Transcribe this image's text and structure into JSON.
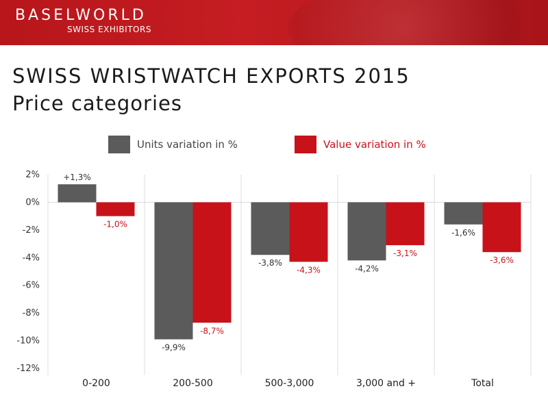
{
  "header": {
    "brand": "BASELWORLD",
    "sub": "SWISS EXHIBITORS"
  },
  "slide": {
    "title": "SWISS WRISTWATCH EXPORTS 2015",
    "subtitle": "Price categories"
  },
  "colors": {
    "units": "#5b5b5b",
    "value": "#c8121a",
    "banner": "#b7161b"
  },
  "chart_data": {
    "type": "bar",
    "categories": [
      "0-200",
      "200-500",
      "500-3,000",
      "3,000 and +",
      "Total"
    ],
    "series": [
      {
        "name": "Units variation in %",
        "values": [
          1.3,
          -9.9,
          -3.8,
          -4.2,
          -1.6
        ],
        "labels": [
          "+1,3%",
          "-9,9%",
          "-3,8%",
          "-4,2%",
          "-1,6%"
        ]
      },
      {
        "name": "Value variation in %",
        "values": [
          -1.0,
          -8.7,
          -4.3,
          -3.1,
          -3.6
        ],
        "labels": [
          "-1,0%",
          "-8,7%",
          "-4,3%",
          "-3,1%",
          "-3,6%"
        ]
      }
    ],
    "ylim": [
      -12,
      2
    ],
    "yticks": [
      2,
      0,
      -2,
      -4,
      -6,
      -8,
      -10,
      -12
    ],
    "ytick_labels": [
      "2%",
      "0%",
      "-2%",
      "-4%",
      "-6%",
      "-8%",
      "-10%",
      "-12%"
    ],
    "legend_position": "top",
    "xlabel": "",
    "ylabel": ""
  }
}
